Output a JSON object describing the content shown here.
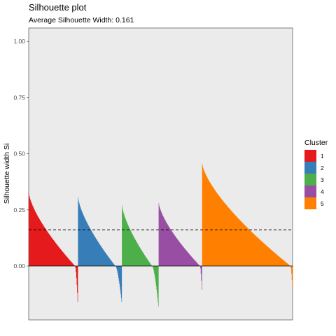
{
  "chart_data": {
    "type": "area",
    "title": "Silhouette plot",
    "subtitle": "Average Silhouette Width: 0.161",
    "xlabel": "",
    "ylabel": "Silhouette width Si",
    "ylim": [
      -0.24,
      1.06
    ],
    "yticks": [
      "1.00",
      "0.75",
      "0.50",
      "0.25",
      "0.00"
    ],
    "ytick_values": [
      1.0,
      0.75,
      0.5,
      0.25,
      0.0
    ],
    "grid": false,
    "reference_line": {
      "value": 0.161,
      "style": "dashed"
    },
    "legend": {
      "title": "Cluster",
      "placement": "right"
    },
    "series": [
      {
        "name": "1",
        "color": "#E41A1C",
        "n": 110,
        "max": 0.325,
        "min": -0.16,
        "negative_fraction": 0.055
      },
      {
        "name": "2",
        "color": "#377EB8",
        "n": 98,
        "max": 0.305,
        "min": -0.16,
        "negative_fraction": 0.14
      },
      {
        "name": "3",
        "color": "#4DAF4A",
        "n": 82,
        "max": 0.27,
        "min": -0.18,
        "negative_fraction": 0.17
      },
      {
        "name": "4",
        "color": "#984EA3",
        "n": 97,
        "max": 0.28,
        "min": -0.105,
        "negative_fraction": 0.04
      },
      {
        "name": "5",
        "color": "#FF7F00",
        "n": 202,
        "max": 0.455,
        "min": -0.1,
        "negative_fraction": 0.02
      }
    ]
  }
}
